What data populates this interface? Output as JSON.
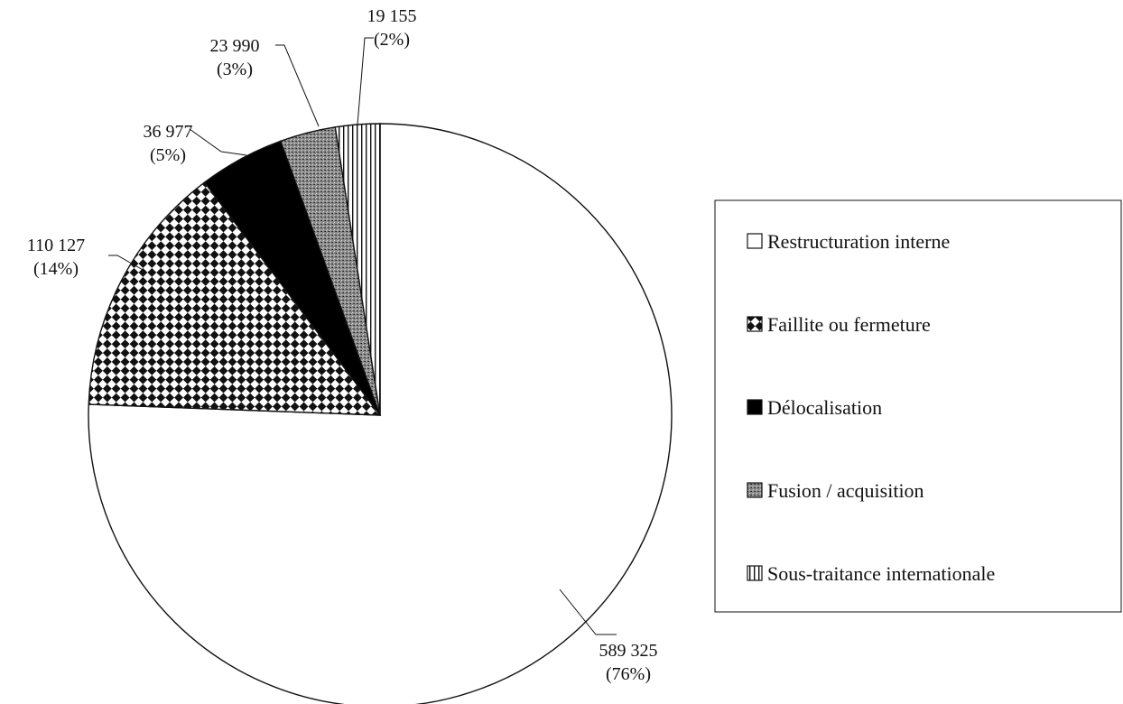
{
  "chart_data": {
    "type": "pie",
    "title": "",
    "series": [
      {
        "name": "Restructuration interne",
        "value": 589325,
        "value_label": "589 325",
        "percent_label": "(76%)",
        "pattern": "white"
      },
      {
        "name": "Faillite ou fermeture",
        "value": 110127,
        "value_label": "110 127",
        "percent_label": "(14%)",
        "pattern": "checker"
      },
      {
        "name": "Délocalisation",
        "value": 36977,
        "value_label": "36 977",
        "percent_label": "(5%)",
        "pattern": "black"
      },
      {
        "name": "Fusion / acquisition",
        "value": 23990,
        "value_label": "23 990",
        "percent_label": "(3%)",
        "pattern": "dotted-gray"
      },
      {
        "name": "Sous-traitance internationale",
        "value": 19155,
        "value_label": "19 155",
        "percent_label": "(2%)",
        "pattern": "vertical-lines"
      }
    ],
    "legend_position": "right"
  }
}
